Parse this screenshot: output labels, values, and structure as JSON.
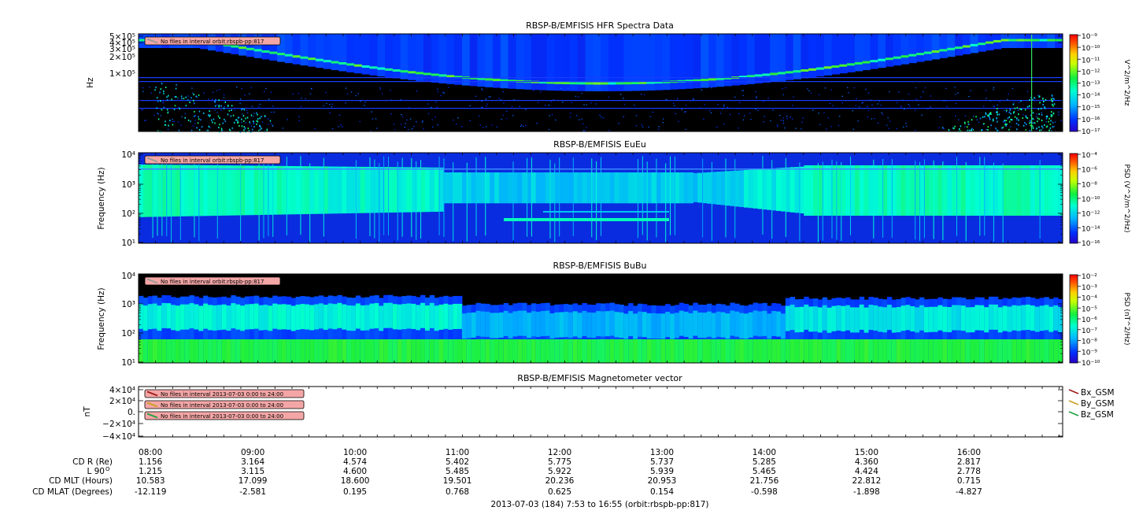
{
  "footer": "2013-07-03 (184) 7:53 to 16:55 (orbit:rbspb-pp:817)",
  "time_ticks": [
    "08:00",
    "09:00",
    "10:00",
    "11:00",
    "12:00",
    "13:00",
    "14:00",
    "15:00",
    "16:00"
  ],
  "ephemeris": {
    "rows": [
      {
        "label": "CD R (Re)",
        "values": [
          "1.156",
          "3.164",
          "4.574",
          "5.402",
          "5.775",
          "5.737",
          "5.285",
          "4.360",
          "2.817"
        ]
      },
      {
        "label": "L 90",
        "sup": "O",
        "values": [
          "1.215",
          "3.115",
          "4.600",
          "5.485",
          "5.922",
          "5.939",
          "5.465",
          "4.424",
          "2.778"
        ]
      },
      {
        "label": "CD MLT (Hours)",
        "values": [
          "10.583",
          "17.099",
          "18.600",
          "19.501",
          "20.236",
          "20.953",
          "21.756",
          "22.812",
          "0.715"
        ]
      },
      {
        "label": "CD MLAT (Degrees)",
        "values": [
          "-12.119",
          "-2.581",
          "0.195",
          "0.768",
          "0.625",
          "0.154",
          "-0.598",
          "-1.898",
          "-4.827"
        ]
      }
    ]
  },
  "chart_data": [
    {
      "type": "heatmap",
      "title": "RBSP-B/EMFISIS  HFR Spectra Data",
      "ylabel": "Hz",
      "y_scale": "log",
      "ytick_labels": [
        "5×10⁵",
        "4×10⁵",
        "3×10⁵",
        "2×10⁵",
        "1×10⁵"
      ],
      "colorbar_label": "V^2/m^2/Hz",
      "colorbar_ticks": [
        "10⁻⁹",
        "10⁻¹⁰",
        "10⁻¹¹",
        "10⁻¹²",
        "10⁻¹³",
        "10⁻¹⁴",
        "10⁻¹⁵",
        "10⁻¹⁶",
        "10⁻¹⁷"
      ],
      "annotation": "No files in interval orbit:rbspb-pp:817"
    },
    {
      "type": "heatmap",
      "title": "RBSP-B/EMFISIS  EuEu",
      "ylabel": "Frequency (Hz)",
      "y_scale": "log",
      "ytick_labels": [
        "10⁴",
        "10³",
        "10²",
        "10¹"
      ],
      "colorbar_label": "PSD (V^2/m^2/Hz)",
      "colorbar_ticks": [
        "10⁻⁴",
        "10⁻⁶",
        "10⁻⁸",
        "10⁻¹⁰",
        "10⁻¹²",
        "10⁻¹⁴",
        "10⁻¹⁶"
      ],
      "annotation": "No files in interval orbit:rbspb-pp:817"
    },
    {
      "type": "heatmap",
      "title": "RBSP-B/EMFISIS  BuBu",
      "ylabel": "Frequency (Hz)",
      "y_scale": "log",
      "ytick_labels": [
        "10⁴",
        "10³",
        "10²",
        "10¹"
      ],
      "colorbar_label": "PSD (nT^2/Hz)",
      "colorbar_ticks": [
        "10⁻²",
        "10⁻³",
        "10⁻⁴",
        "10⁻⁵",
        "10⁻⁶",
        "10⁻⁷",
        "10⁻⁸",
        "10⁻⁹",
        "10⁻¹⁰"
      ],
      "annotation": "No files in interval orbit:rbspb-pp:817"
    },
    {
      "type": "line",
      "title": "RBSP-B/EMFISIS  Magnetometer vector",
      "ylabel": "nT",
      "ytick_labels": [
        "4×10⁴",
        "2×10⁴",
        "0.",
        "−2×10⁴",
        "−4×10⁴"
      ],
      "annotations": [
        "No files in interval 2013-07-03 0:00 to 24:00",
        "No files in interval 2013-07-03 0:00 to 24:00",
        "No files in interval 2013-07-03 0:00 to 24:00"
      ],
      "legend": [
        {
          "name": "Bx_GSM",
          "color": "#a01c1c"
        },
        {
          "name": "By_GSM",
          "color": "#c8a020"
        },
        {
          "name": "Bz_GSM",
          "color": "#20a040"
        }
      ]
    }
  ]
}
